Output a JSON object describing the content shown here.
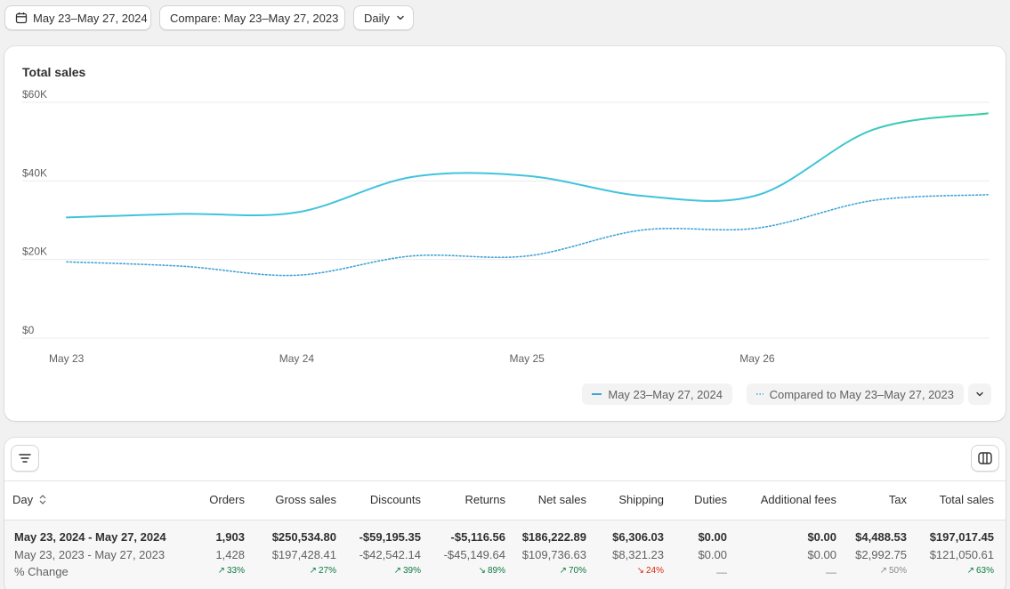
{
  "toolbar": {
    "date_range_label": "May 23–May 27, 2024",
    "compare_label": "Compare: May 23–May 27, 2023",
    "granularity_label": "Daily"
  },
  "chart_data": {
    "type": "line",
    "title": "Total sales",
    "x_tick_labels": [
      "May 23",
      "May 24",
      "May 25",
      "May 26"
    ],
    "y_tick_labels": [
      "$60K",
      "$40K",
      "$20K",
      "$0"
    ],
    "y_ticks": [
      60000,
      40000,
      20000,
      0
    ],
    "ylim": [
      0,
      60000
    ],
    "x": [
      0,
      0.5,
      1,
      1.5,
      2,
      2.5,
      3,
      3.5,
      4
    ],
    "series": [
      {
        "name": "May 23–May 27, 2024",
        "style": "solid",
        "color": "#41c3dd",
        "values": [
          30700,
          31600,
          32000,
          41000,
          41300,
          36200,
          36400,
          53000,
          57200
        ]
      },
      {
        "name": "Compared to May 23–May 27, 2023",
        "style": "dotted",
        "color": "#41a3d6",
        "values": [
          19400,
          18300,
          16000,
          20900,
          20900,
          27500,
          28000,
          35000,
          36500
        ]
      }
    ],
    "end_color": "#35cf9a",
    "legend": [
      "May 23–May 27, 2024",
      "Compared to May 23–May 27, 2023"
    ],
    "legend_placement": "bottom-right"
  },
  "table": {
    "columns": [
      "Day",
      "Orders",
      "Gross sales",
      "Discounts",
      "Returns",
      "Net sales",
      "Shipping",
      "Duties",
      "Additional fees",
      "Tax",
      "Total sales"
    ],
    "rows": [
      {
        "label": "May 23, 2024 - May 27, 2024",
        "orders": "1,903",
        "gross": "$250,534.80",
        "discounts": "-$59,195.35",
        "returns": "-$5,116.56",
        "net": "$186,222.89",
        "shipping": "$6,306.03",
        "duties": "$0.00",
        "fees": "$0.00",
        "tax": "$4,488.53",
        "total": "$197,017.45"
      },
      {
        "label": "May 23, 2023 - May 27, 2023",
        "orders": "1,428",
        "gross": "$197,428.41",
        "discounts": "-$42,542.14",
        "returns": "-$45,149.64",
        "net": "$109,736.63",
        "shipping": "$8,321.23",
        "duties": "$0.00",
        "fees": "$0.00",
        "tax": "$2,992.75",
        "total": "$121,050.61"
      }
    ],
    "change": {
      "label": "% Change",
      "orders": "33%",
      "gross": "27%",
      "discounts": "39%",
      "returns": "89%",
      "net": "70%",
      "shipping": "24%",
      "duties": "—",
      "fees": "—",
      "tax": "50%",
      "total": "63%"
    },
    "colors": {
      "up": "#0c7a43",
      "down": "#d72c0d",
      "neutral": "#8a8a8a"
    }
  }
}
